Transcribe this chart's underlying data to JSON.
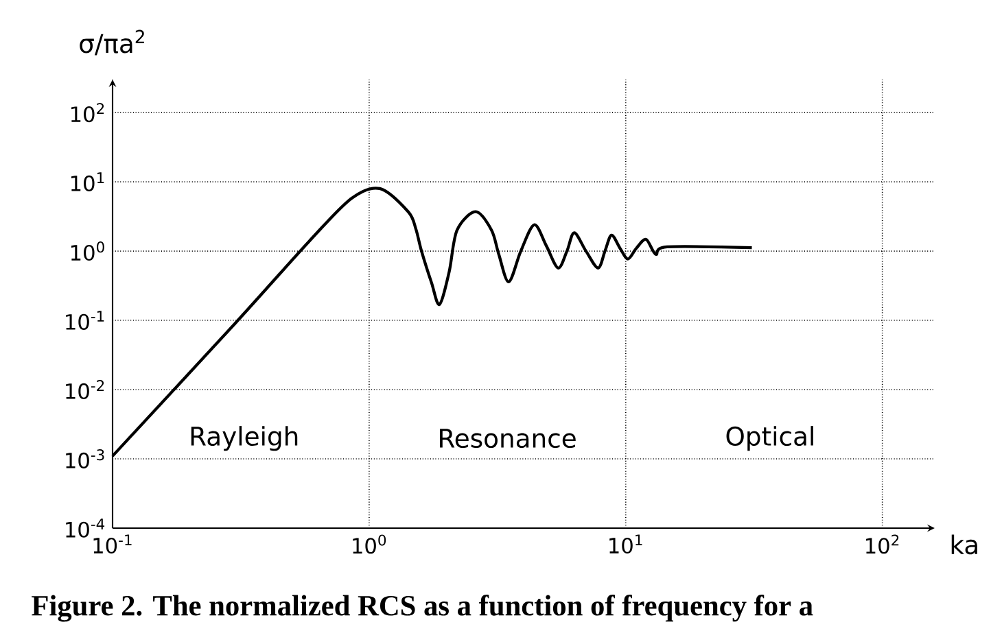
{
  "chart_data": {
    "type": "line",
    "xlabel": "ka",
    "ylabel": "σ/πa$^{2}$",
    "x": [
      0.1,
      0.3,
      0.58,
      0.85,
      1.1,
      1.42,
      1.52,
      1.6,
      1.75,
      1.88,
      2.05,
      2.2,
      2.6,
      3.0,
      3.2,
      3.5,
      3.9,
      4.4,
      4.9,
      5.45,
      5.9,
      6.3,
      7.0,
      7.8,
      8.3,
      8.8,
      9.5,
      10.2,
      11,
      12,
      13.1,
      14.5,
      31
    ],
    "values": [
      0.0011,
      0.09,
      1.35,
      5.7,
      8,
      3.7,
      2.1,
      1,
      0.35,
      0.17,
      0.5,
      2,
      3.7,
      2,
      0.9,
      0.36,
      1,
      2.4,
      1.2,
      0.57,
      1,
      1.84,
      1.0,
      0.57,
      1,
      1.7,
      1.1,
      0.77,
      1.1,
      1.48,
      0.9,
      1.15,
      1.12
    ],
    "color": "#000000",
    "marker": "none",
    "line_style": "solid",
    "log": "xy",
    "grid": true,
    "xlim": [
      0.1,
      160
    ],
    "ylim": [
      0.0001,
      300
    ],
    "xticks": [
      {
        "value": 0.1,
        "label": "10$^{-1}$"
      },
      {
        "value": 1,
        "label": "10$^{0}$"
      },
      {
        "value": 10,
        "label": "10$^{1}$"
      },
      {
        "value": 100,
        "label": "10$^{2}$"
      }
    ],
    "yticks": [
      {
        "value": 0.0001,
        "label": "10$^{-4}$"
      },
      {
        "value": 0.001,
        "label": "10$^{-3}$"
      },
      {
        "value": 0.01,
        "label": "10$^{-2}$"
      },
      {
        "value": 0.1,
        "label": "10$^{-1}$"
      },
      {
        "value": 1,
        "label": "10$^{0}$"
      },
      {
        "value": 10,
        "label": "10$^{1}$"
      },
      {
        "value": 100,
        "label": "10$^{2}$"
      }
    ],
    "annotations": [
      "Rayleigh",
      "Resonance",
      "Optical",
      "Figure 2. The normalized RCS as a function of frequency for a"
    ]
  }
}
